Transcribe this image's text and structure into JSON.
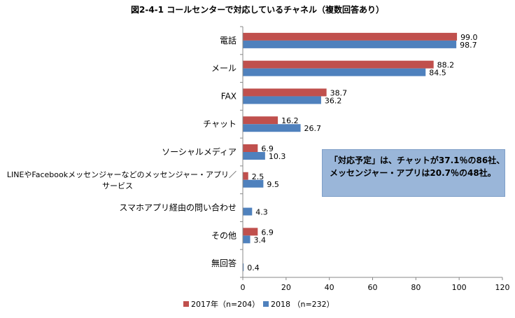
{
  "chart_data": {
    "type": "bar",
    "orientation": "horizontal",
    "title": "図2-4-1 コールセンターで対応しているチャネル（複数回答あり）",
    "categories": [
      "電話",
      "メール",
      "FAX",
      "チャット",
      "ソーシャルメディア",
      "LINEやFacebookメッセンジャーなどのメッセンジャー・アプリ／サービス",
      "スマホアプリ経由の問い合わせ",
      "その他",
      "無回答"
    ],
    "category_lines": [
      [
        "電話"
      ],
      [
        "メール"
      ],
      [
        "FAX"
      ],
      [
        "チャット"
      ],
      [
        "ソーシャルメディア"
      ],
      [
        "LINEやFacebookメッセンジャーなどのメッセンジャー・アプリ／",
        "サービス"
      ],
      [
        "スマホアプリ経由の問い合わせ"
      ],
      [
        "その他"
      ],
      [
        "無回答"
      ]
    ],
    "series": [
      {
        "name": "2017年（n=204）",
        "color": "#c0504d",
        "values": [
          99.0,
          88.2,
          38.7,
          16.2,
          6.9,
          2.5,
          null,
          6.9,
          null
        ],
        "labels": [
          "99.0",
          "88.2",
          "38.7",
          "16.2",
          "6.9",
          "2.5",
          "",
          "6.9",
          ""
        ]
      },
      {
        "name": "2018 （n=232）",
        "color": "#4f81bd",
        "values": [
          98.7,
          84.5,
          36.2,
          26.7,
          10.3,
          9.5,
          4.3,
          3.4,
          0.4
        ],
        "labels": [
          "98.7",
          "84.5",
          "36.2",
          "26.7",
          "10.3",
          "9.5",
          "4.3",
          "3.4",
          "0.4"
        ]
      }
    ],
    "xlim": [
      0,
      120
    ],
    "xticks": [
      0,
      20,
      40,
      60,
      80,
      100,
      120
    ],
    "xtick_labels": [
      "0",
      "20",
      "40",
      "60",
      "80",
      "100",
      "120"
    ],
    "grid": false,
    "legend_position": "bottom",
    "annotation": {
      "lines": [
        "「対応予定」は、チャットが37.1％の86社、",
        "メッセンジャー・アプリは20.7％の48社。"
      ]
    }
  }
}
